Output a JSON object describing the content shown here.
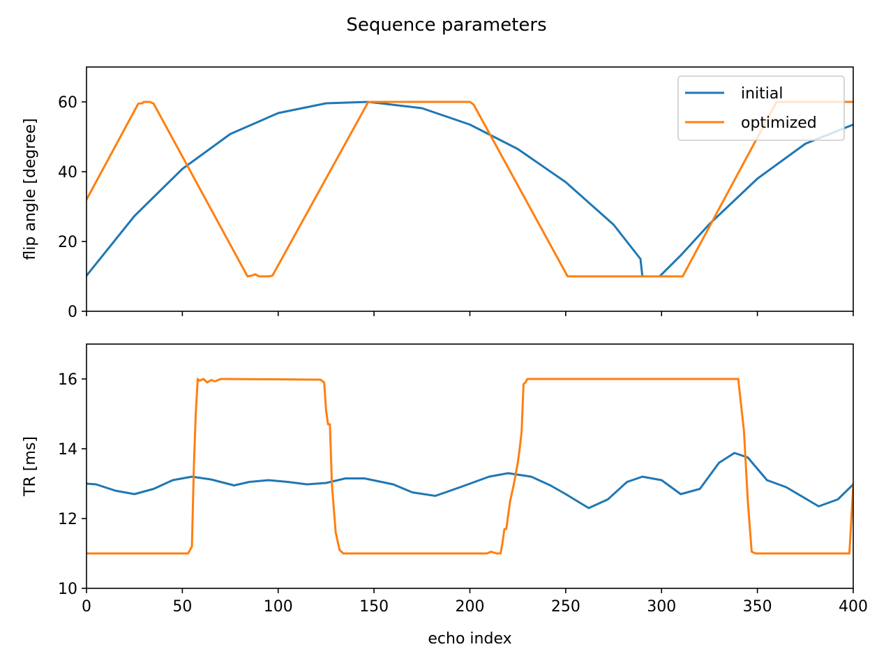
{
  "chart_data": {
    "title": "Sequence parameters",
    "type": "line",
    "xlabel": "echo index",
    "xlim": [
      0,
      400
    ],
    "xticks": [
      0,
      50,
      100,
      150,
      200,
      250,
      300,
      350,
      400
    ],
    "series_colors": {
      "initial": "#1f77b4",
      "optimized": "#ff7f0e"
    },
    "legend": {
      "placement": "upper right",
      "entries": [
        "initial",
        "optimized"
      ],
      "panel": "top"
    },
    "panels": [
      {
        "ylabel": "flip angle [degree]",
        "ylim": [
          0,
          70
        ],
        "yticks": [
          0,
          20,
          40,
          60
        ],
        "show_xticklabels": false,
        "series": [
          {
            "name": "initial",
            "x": [
              0,
              25,
              50,
              75,
              100,
              125,
              147,
              175,
              200,
              225,
              250,
              275,
              289,
              290,
              299,
              310,
              325,
              350,
              375,
              400
            ],
            "y": [
              10.2,
              27.3,
              40.8,
              50.8,
              56.8,
              59.6,
              60,
              58.2,
              53.5,
              46.5,
              37.0,
              24.8,
              15.0,
              10.0,
              10.0,
              16.0,
              25.0,
              38.0,
              48.0,
              53.5
            ]
          },
          {
            "name": "optimized",
            "x": [
              0,
              27,
              29,
              30,
              33,
              35,
              84,
              86,
              88,
              90,
              95,
              97,
              147,
              200,
              202,
              251,
              311,
              360,
              362,
              400
            ],
            "y": [
              32,
              59.5,
              59.6,
              60,
              60,
              59.5,
              10,
              10.2,
              10.6,
              10,
              10,
              10.2,
              60,
              60,
              59.2,
              10,
              10,
              60,
              60,
              60
            ]
          }
        ]
      },
      {
        "ylabel": "TR [ms]",
        "ylim": [
          10,
          17
        ],
        "yticks": [
          10,
          12,
          14,
          16
        ],
        "show_xticklabels": true,
        "series": [
          {
            "name": "initial",
            "x": [
              0,
              5,
              15,
              25,
              35,
              45,
              55,
              65,
              77,
              85,
              95,
              105,
              115,
              125,
              135,
              145,
              160,
              170,
              182,
              195,
              210,
              220,
              232,
              242,
              250,
              262,
              272,
              282,
              290,
              300,
              310,
              320,
              330,
              338,
              345,
              355,
              365,
              382,
              392,
              400
            ],
            "y": [
              13.0,
              12.98,
              12.8,
              12.7,
              12.85,
              13.1,
              13.2,
              13.12,
              12.95,
              13.05,
              13.1,
              13.05,
              12.98,
              13.02,
              13.15,
              13.15,
              12.98,
              12.75,
              12.65,
              12.9,
              13.2,
              13.3,
              13.2,
              12.95,
              12.7,
              12.3,
              12.55,
              13.05,
              13.2,
              13.1,
              12.7,
              12.85,
              13.6,
              13.88,
              13.75,
              13.1,
              12.9,
              12.35,
              12.55,
              12.98
            ]
          },
          {
            "name": "optimized",
            "x": [
              0,
              53,
              55,
              56,
              57,
              58,
              59,
              61,
              63,
              65,
              67,
              70,
              72,
              122,
              124,
              125,
              126,
              127,
              128,
              129,
              130,
              132,
              134,
              136,
              150,
              209,
              211,
              214,
              216,
              217,
              218,
              219,
              221,
              223,
              225,
              226,
              227,
              228,
              229,
              230,
              250,
              340,
              341,
              343,
              345,
              347,
              349,
              350,
              352,
              398,
              399,
              400
            ],
            "y": [
              11,
              11,
              11.2,
              13.5,
              15.0,
              16.0,
              15.95,
              16.0,
              15.9,
              15.97,
              15.93,
              16.0,
              16.0,
              15.98,
              15.9,
              15.1,
              14.7,
              14.7,
              13.0,
              12.3,
              11.6,
              11.1,
              11.0,
              11.0,
              11.0,
              11.0,
              11.05,
              11.0,
              11.0,
              11.3,
              11.7,
              11.7,
              12.5,
              13.0,
              13.6,
              14.0,
              14.5,
              15.85,
              15.9,
              16.0,
              16.0,
              16.0,
              15.5,
              14.5,
              12.5,
              11.05,
              11.0,
              11.0,
              11.0,
              11.0,
              12.0,
              12.95
            ]
          }
        ]
      }
    ]
  }
}
